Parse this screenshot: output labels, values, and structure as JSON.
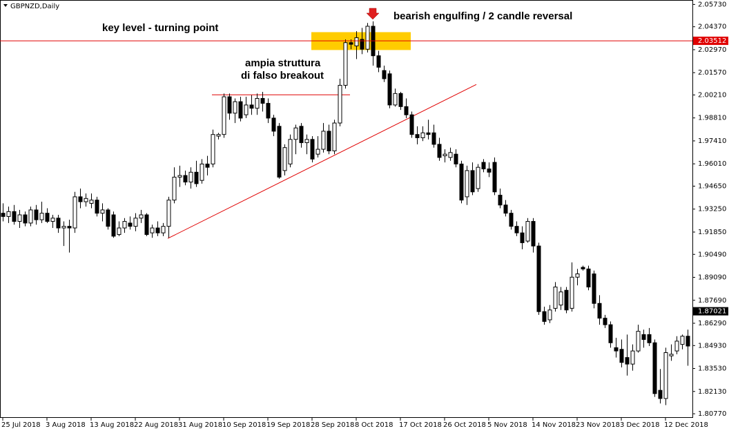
{
  "chart_data": {
    "type": "candlestick",
    "title": "GBPNZD,Daily",
    "categories": [
      "25 Jul 2018",
      null,
      null,
      null,
      null,
      null,
      null,
      null,
      "3 Aug 2018",
      null,
      null,
      null,
      null,
      null,
      null,
      null,
      "13 Aug 2018",
      null,
      null,
      null,
      null,
      null,
      null,
      null,
      "22 Aug 2018",
      null,
      null,
      null,
      null,
      null,
      null,
      null,
      "31 Aug 2018",
      null,
      null,
      null,
      null,
      null,
      null,
      null,
      "10 Sep 2018",
      null,
      null,
      null,
      null,
      null,
      null,
      null,
      "19 Sep 2018",
      null,
      null,
      null,
      null,
      null,
      null,
      null,
      "28 Sep 2018",
      null,
      null,
      null,
      null,
      null,
      null,
      null,
      "8 Oct 2018",
      null,
      null,
      null,
      null,
      null,
      null,
      null,
      "17 Oct 2018",
      null,
      null,
      null,
      null,
      null,
      null,
      null,
      "26 Oct 2018",
      null,
      null,
      null,
      null,
      null,
      null,
      null,
      "5 Nov 2018",
      null,
      null,
      null,
      null,
      null,
      null,
      null,
      "14 Nov 2018",
      null,
      null,
      null,
      null,
      null,
      null,
      null,
      "23 Nov 2018",
      null,
      null,
      null,
      null,
      null,
      null,
      null,
      "3 Dec 2018",
      null,
      null,
      null,
      null,
      null,
      null,
      null,
      "12 Dec 2018",
      null,
      null,
      null,
      null
    ],
    "ohlc": [
      [
        1.93,
        1.936,
        1.925,
        1.928
      ],
      [
        1.928,
        1.934,
        1.924,
        1.931
      ],
      [
        1.931,
        1.935,
        1.923,
        1.925
      ],
      [
        1.925,
        1.932,
        1.921,
        1.929
      ],
      [
        1.929,
        1.931,
        1.922,
        1.924
      ],
      [
        1.924,
        1.934,
        1.922,
        1.932
      ],
      [
        1.932,
        1.935,
        1.923,
        1.926
      ],
      [
        1.926,
        1.937,
        1.924,
        1.93
      ],
      [
        1.93,
        1.933,
        1.924,
        1.925
      ],
      [
        1.925,
        1.929,
        1.921,
        1.927
      ],
      [
        1.927,
        1.929,
        1.918,
        1.921
      ],
      [
        1.921,
        1.925,
        1.91,
        1.922
      ],
      [
        1.922,
        1.926,
        1.906,
        1.921
      ],
      [
        1.921,
        1.943,
        1.918,
        1.94
      ],
      [
        1.94,
        1.945,
        1.933,
        1.937
      ],
      [
        1.937,
        1.942,
        1.934,
        1.939
      ],
      [
        1.936,
        1.942,
        1.933,
        1.938
      ],
      [
        1.938,
        1.94,
        1.928,
        1.93
      ],
      [
        1.93,
        1.936,
        1.925,
        1.932
      ],
      [
        1.932,
        1.933,
        1.92,
        1.922
      ],
      [
        1.929,
        1.931,
        1.915,
        1.916
      ],
      [
        1.917,
        1.925,
        1.916,
        1.921
      ],
      [
        1.921,
        1.927,
        1.918,
        1.925
      ],
      [
        1.924,
        1.928,
        1.92,
        1.922
      ],
      [
        1.922,
        1.93,
        1.919,
        1.927
      ],
      [
        1.927,
        1.932,
        1.924,
        1.929
      ],
      [
        1.929,
        1.93,
        1.916,
        1.917
      ],
      [
        1.918,
        1.923,
        1.915,
        1.921
      ],
      [
        1.921,
        1.925,
        1.916,
        1.918
      ],
      [
        1.918,
        1.924,
        1.916,
        1.922
      ],
      [
        1.922,
        1.94,
        1.915,
        1.938
      ],
      [
        1.938,
        1.958,
        1.936,
        1.952
      ],
      [
        1.952,
        1.959,
        1.946,
        1.953
      ],
      [
        1.953,
        1.956,
        1.947,
        1.949
      ],
      [
        1.949,
        1.958,
        1.945,
        1.955
      ],
      [
        1.955,
        1.962,
        1.946,
        1.948
      ],
      [
        1.95,
        1.963,
        1.948,
        1.96
      ],
      [
        1.96,
        1.965,
        1.953,
        1.958
      ],
      [
        1.96,
        1.981,
        1.958,
        1.978
      ],
      [
        1.977,
        1.979,
        1.975,
        1.978
      ],
      [
        1.978,
        2.003,
        1.976,
        2.001
      ],
      [
        2.001,
        2.003,
        1.987,
        1.991
      ],
      [
        1.991,
        2.0,
        1.985,
        1.998
      ],
      [
        1.998,
        2.001,
        1.986,
        1.988
      ],
      [
        1.99,
        2.001,
        1.988,
        1.996
      ],
      [
        1.996,
        2.002,
        1.99,
        1.994
      ],
      [
        1.994,
        2.003,
        1.99,
        2.0
      ],
      [
        2.0,
        2.004,
        1.992,
        1.997
      ],
      [
        1.997,
        2.0,
        1.985,
        1.988
      ],
      [
        1.988,
        1.99,
        1.977,
        1.98
      ],
      [
        1.983,
        1.985,
        1.951,
        1.952
      ],
      [
        1.956,
        1.972,
        1.953,
        1.97
      ],
      [
        1.96,
        1.978,
        1.958,
        1.975
      ],
      [
        1.975,
        1.984,
        1.966,
        1.982
      ],
      [
        1.983,
        1.985,
        1.97,
        1.973
      ],
      [
        1.973,
        1.978,
        1.966,
        1.975
      ],
      [
        1.975,
        1.977,
        1.961,
        1.963
      ],
      [
        1.966,
        1.977,
        1.964,
        1.969
      ],
      [
        1.969,
        1.985,
        1.967,
        1.98
      ],
      [
        1.98,
        1.984,
        1.966,
        1.968
      ],
      [
        1.968,
        1.987,
        1.966,
        1.985
      ],
      [
        1.985,
        2.012,
        1.983,
        2.008
      ],
      [
        2.008,
        2.036,
        2.006,
        2.034
      ],
      [
        2.034,
        2.036,
        2.03,
        2.033
      ],
      [
        2.032,
        2.041,
        2.024,
        2.037
      ],
      [
        2.036,
        2.043,
        2.027,
        2.03
      ],
      [
        2.03,
        2.046,
        2.028,
        2.044
      ],
      [
        2.044,
        2.047,
        2.02,
        2.026
      ],
      [
        2.026,
        2.029,
        2.016,
        2.019
      ],
      [
        2.017,
        2.02,
        2.01,
        2.012
      ],
      [
        2.015,
        2.017,
        1.994,
        1.996
      ],
      [
        1.996,
        2.006,
        1.995,
        2.003
      ],
      [
        2.003,
        2.004,
        1.993,
        1.995
      ],
      [
        1.995,
        2.0,
        1.988,
        1.99
      ],
      [
        1.99,
        1.992,
        1.976,
        1.978
      ],
      [
        1.978,
        1.983,
        1.972,
        1.976
      ],
      [
        1.976,
        1.983,
        1.974,
        1.979
      ],
      [
        1.979,
        1.987,
        1.975,
        1.978
      ],
      [
        1.979,
        1.984,
        1.97,
        1.972
      ],
      [
        1.972,
        1.976,
        1.962,
        1.964
      ],
      [
        1.965,
        1.969,
        1.961,
        1.966
      ],
      [
        1.964,
        1.97,
        1.962,
        1.967
      ],
      [
        1.966,
        1.969,
        1.958,
        1.96
      ],
      [
        1.96,
        1.962,
        1.936,
        1.938
      ],
      [
        1.94,
        1.959,
        1.935,
        1.956
      ],
      [
        1.956,
        1.961,
        1.941,
        1.943
      ],
      [
        1.945,
        1.96,
        1.943,
        1.958
      ],
      [
        1.961,
        1.963,
        1.955,
        1.957
      ],
      [
        1.957,
        1.961,
        1.952,
        1.955
      ],
      [
        1.961,
        1.964,
        1.941,
        1.943
      ],
      [
        1.941,
        1.945,
        1.933,
        1.935
      ],
      [
        1.935,
        1.938,
        1.928,
        1.93
      ],
      [
        1.93,
        1.932,
        1.92,
        1.922
      ],
      [
        1.922,
        1.925,
        1.916,
        1.918
      ],
      [
        1.918,
        1.922,
        1.908,
        1.912
      ],
      [
        1.913,
        1.927,
        1.912,
        1.925
      ],
      [
        1.925,
        1.927,
        1.906,
        1.91
      ],
      [
        1.91,
        1.912,
        1.868,
        1.87
      ],
      [
        1.87,
        1.873,
        1.862,
        1.864
      ],
      [
        1.865,
        1.874,
        1.863,
        1.871
      ],
      [
        1.872,
        1.888,
        1.87,
        1.885
      ],
      [
        1.874,
        1.885,
        1.871,
        1.882
      ],
      [
        1.883,
        1.885,
        1.869,
        1.871
      ],
      [
        1.872,
        1.9,
        1.87,
        1.891
      ],
      [
        1.891,
        1.896,
        1.886,
        1.893
      ],
      [
        1.897,
        1.898,
        1.895,
        1.896
      ],
      [
        1.896,
        1.898,
        1.883,
        1.885
      ],
      [
        1.893,
        1.895,
        1.872,
        1.875
      ],
      [
        1.875,
        1.88,
        1.862,
        1.866
      ],
      [
        1.866,
        1.868,
        1.86,
        1.862
      ],
      [
        1.862,
        1.864,
        1.848,
        1.851
      ],
      [
        1.848,
        1.854,
        1.842,
        1.846
      ],
      [
        1.847,
        1.853,
        1.836,
        1.839
      ],
      [
        1.842,
        1.856,
        1.831,
        1.838
      ],
      [
        1.838,
        1.85,
        1.834,
        1.846
      ],
      [
        1.846,
        1.862,
        1.845,
        1.858
      ],
      [
        1.856,
        1.859,
        1.848,
        1.853
      ],
      [
        1.856,
        1.86,
        1.849,
        1.851
      ],
      [
        1.851,
        1.853,
        1.818,
        1.82
      ],
      [
        1.822,
        1.835,
        1.814,
        1.817
      ],
      [
        1.817,
        1.848,
        1.813,
        1.845
      ],
      [
        1.843,
        1.85,
        1.84,
        1.844
      ],
      [
        1.846,
        1.855,
        1.844,
        1.852
      ],
      [
        1.85,
        1.856,
        1.847,
        1.855
      ],
      [
        1.855,
        1.859,
        1.837,
        1.849
      ]
    ],
    "ylim": [
      1.8052,
      2.06
    ],
    "yticks": [
      {
        "value": 2.0573,
        "label": "2.05730"
      },
      {
        "value": 2.0437,
        "label": "2.04370"
      },
      {
        "value": 2.0297,
        "label": "2.02970"
      },
      {
        "value": 2.0157,
        "label": "2.01570"
      },
      {
        "value": 2.0021,
        "label": "2.00210"
      },
      {
        "value": 1.9881,
        "label": "1.98810"
      },
      {
        "value": 1.9741,
        "label": "1.97410"
      },
      {
        "value": 1.9601,
        "label": "1.96010"
      },
      {
        "value": 1.9465,
        "label": "1.94650"
      },
      {
        "value": 1.9325,
        "label": "1.93250"
      },
      {
        "value": 1.9185,
        "label": "1.91850"
      },
      {
        "value": 1.9049,
        "label": "1.90490"
      },
      {
        "value": 1.8909,
        "label": "1.89090"
      },
      {
        "value": 1.8769,
        "label": "1.87690"
      },
      {
        "value": 1.8629,
        "label": "1.86290"
      },
      {
        "value": 1.8493,
        "label": "1.84930"
      },
      {
        "value": 1.8353,
        "label": "1.83530"
      },
      {
        "value": 1.8213,
        "label": "1.82130"
      },
      {
        "value": 1.8077,
        "label": "1.80770"
      }
    ],
    "price_labels": [
      {
        "value": 2.03512,
        "label": "2.03512",
        "color": "#e00000"
      },
      {
        "value": 1.87021,
        "label": "1.87021",
        "color": "#000000"
      }
    ],
    "zone": [
      2.0295,
      2.0404
    ],
    "resistance": 2.0022,
    "trendline": [
      1.9146,
      2.0085
    ],
    "annotations": [
      "key level - turning point",
      "bearish engulfing / 2 candle reversal",
      "ampia struttura",
      "di falso breakout"
    ],
    "bull_color": "#ffffff",
    "bear_color": "#000000"
  }
}
